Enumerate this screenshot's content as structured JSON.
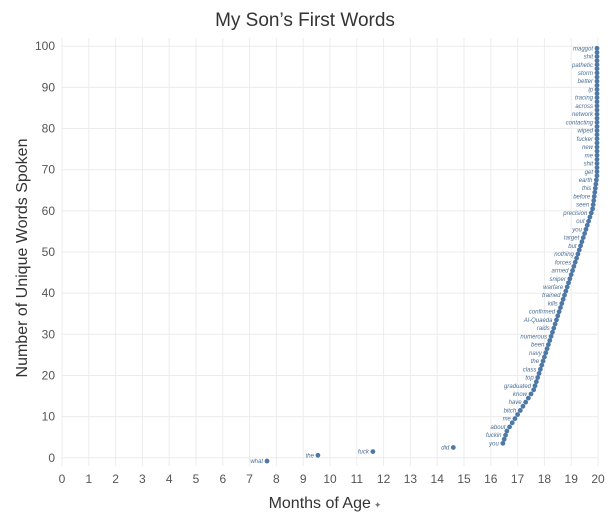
{
  "chart_data": {
    "type": "scatter",
    "title": "My Son’s First Words",
    "xlabel": "Months of Age",
    "xlabel_marker": "✦",
    "ylabel": "Number of Unique Words Spoken",
    "xlim": [
      0,
      20
    ],
    "ylim": [
      -2,
      102
    ],
    "x_ticks": [
      0,
      1,
      2,
      3,
      4,
      5,
      6,
      7,
      8,
      9,
      10,
      11,
      12,
      13,
      14,
      15,
      16,
      17,
      18,
      19,
      20
    ],
    "y_ticks": [
      0,
      10,
      20,
      30,
      40,
      50,
      60,
      70,
      80,
      90,
      100
    ],
    "grid": true,
    "point_color": "#4e79a7",
    "points": [
      {
        "x": 7.65,
        "y": -0.8,
        "label": "what"
      },
      {
        "x": 9.55,
        "y": 0.6,
        "label": "the"
      },
      {
        "x": 11.6,
        "y": 1.5,
        "label": "fuck"
      },
      {
        "x": 14.6,
        "y": 2.5,
        "label": "did"
      },
      {
        "x": 16.45,
        "y": 3.5,
        "label": "you"
      },
      {
        "x": 16.5,
        "y": 4.5,
        "label": ""
      },
      {
        "x": 16.55,
        "y": 5.5,
        "label": "fuckin"
      },
      {
        "x": 16.6,
        "y": 6.5,
        "label": ""
      },
      {
        "x": 16.7,
        "y": 7.5,
        "label": "about"
      },
      {
        "x": 16.8,
        "y": 8.5,
        "label": ""
      },
      {
        "x": 16.9,
        "y": 9.5,
        "label": "me"
      },
      {
        "x": 17.0,
        "y": 10.5,
        "label": ""
      },
      {
        "x": 17.1,
        "y": 11.5,
        "label": "bitch"
      },
      {
        "x": 17.2,
        "y": 12.5,
        "label": ""
      },
      {
        "x": 17.3,
        "y": 13.5,
        "label": "have"
      },
      {
        "x": 17.4,
        "y": 14.5,
        "label": ""
      },
      {
        "x": 17.5,
        "y": 15.5,
        "label": "know"
      },
      {
        "x": 17.6,
        "y": 16.5,
        "label": ""
      },
      {
        "x": 17.65,
        "y": 17.5,
        "label": "graduated"
      },
      {
        "x": 17.7,
        "y": 18.5,
        "label": ""
      },
      {
        "x": 17.75,
        "y": 19.5,
        "label": "top"
      },
      {
        "x": 17.8,
        "y": 20.5,
        "label": ""
      },
      {
        "x": 17.85,
        "y": 21.5,
        "label": "class"
      },
      {
        "x": 17.9,
        "y": 22.5,
        "label": ""
      },
      {
        "x": 17.95,
        "y": 23.5,
        "label": "the"
      },
      {
        "x": 18.0,
        "y": 24.5,
        "label": ""
      },
      {
        "x": 18.05,
        "y": 25.5,
        "label": "navy"
      },
      {
        "x": 18.1,
        "y": 26.5,
        "label": ""
      },
      {
        "x": 18.15,
        "y": 27.5,
        "label": "been"
      },
      {
        "x": 18.2,
        "y": 28.5,
        "label": ""
      },
      {
        "x": 18.25,
        "y": 29.5,
        "label": "numerous"
      },
      {
        "x": 18.3,
        "y": 30.5,
        "label": ""
      },
      {
        "x": 18.35,
        "y": 31.5,
        "label": "raids"
      },
      {
        "x": 18.4,
        "y": 32.5,
        "label": ""
      },
      {
        "x": 18.45,
        "y": 33.5,
        "label": "Al-Quaeda"
      },
      {
        "x": 18.5,
        "y": 34.5,
        "label": ""
      },
      {
        "x": 18.55,
        "y": 35.5,
        "label": "confirmed"
      },
      {
        "x": 18.6,
        "y": 36.5,
        "label": ""
      },
      {
        "x": 18.65,
        "y": 37.5,
        "label": "kills"
      },
      {
        "x": 18.7,
        "y": 38.5,
        "label": ""
      },
      {
        "x": 18.75,
        "y": 39.5,
        "label": "trained"
      },
      {
        "x": 18.8,
        "y": 40.5,
        "label": ""
      },
      {
        "x": 18.85,
        "y": 41.5,
        "label": "warfare"
      },
      {
        "x": 18.9,
        "y": 42.5,
        "label": ""
      },
      {
        "x": 18.95,
        "y": 43.5,
        "label": "sniper"
      },
      {
        "x": 19.0,
        "y": 44.5,
        "label": ""
      },
      {
        "x": 19.05,
        "y": 45.5,
        "label": "armed"
      },
      {
        "x": 19.1,
        "y": 46.5,
        "label": ""
      },
      {
        "x": 19.15,
        "y": 47.5,
        "label": "forces"
      },
      {
        "x": 19.2,
        "y": 48.5,
        "label": ""
      },
      {
        "x": 19.25,
        "y": 49.5,
        "label": "nothing"
      },
      {
        "x": 19.3,
        "y": 50.5,
        "label": ""
      },
      {
        "x": 19.35,
        "y": 51.5,
        "label": "but"
      },
      {
        "x": 19.4,
        "y": 52.5,
        "label": ""
      },
      {
        "x": 19.45,
        "y": 53.5,
        "label": "target"
      },
      {
        "x": 19.5,
        "y": 54.5,
        "label": ""
      },
      {
        "x": 19.55,
        "y": 55.5,
        "label": "you"
      },
      {
        "x": 19.6,
        "y": 56.5,
        "label": ""
      },
      {
        "x": 19.65,
        "y": 57.5,
        "label": "out"
      },
      {
        "x": 19.7,
        "y": 58.5,
        "label": ""
      },
      {
        "x": 19.75,
        "y": 59.5,
        "label": "precision"
      },
      {
        "x": 19.8,
        "y": 60.5,
        "label": ""
      },
      {
        "x": 19.82,
        "y": 61.5,
        "label": "seen"
      },
      {
        "x": 19.84,
        "y": 62.5,
        "label": ""
      },
      {
        "x": 19.86,
        "y": 63.5,
        "label": "before"
      },
      {
        "x": 19.88,
        "y": 64.5,
        "label": ""
      },
      {
        "x": 19.9,
        "y": 65.5,
        "label": "this"
      },
      {
        "x": 19.92,
        "y": 66.5,
        "label": ""
      },
      {
        "x": 19.94,
        "y": 67.5,
        "label": "earth"
      },
      {
        "x": 19.96,
        "y": 68.5,
        "label": ""
      },
      {
        "x": 19.97,
        "y": 69.5,
        "label": "get"
      },
      {
        "x": 19.98,
        "y": 70.5,
        "label": ""
      },
      {
        "x": 19.99,
        "y": 71.5,
        "label": "shit"
      },
      {
        "x": 20.0,
        "y": 72.5,
        "label": ""
      },
      {
        "x": 20.01,
        "y": 73.5,
        "label": "me"
      },
      {
        "x": 20.02,
        "y": 74.5,
        "label": ""
      },
      {
        "x": 20.03,
        "y": 75.5,
        "label": "new"
      },
      {
        "x": 20.04,
        "y": 76.5,
        "label": ""
      },
      {
        "x": 20.05,
        "y": 77.5,
        "label": "fucker"
      },
      {
        "x": 20.06,
        "y": 78.5,
        "label": ""
      },
      {
        "x": 20.07,
        "y": 79.5,
        "label": "wiped"
      },
      {
        "x": 20.08,
        "y": 80.5,
        "label": ""
      },
      {
        "x": 20.09,
        "y": 81.5,
        "label": "contacting"
      },
      {
        "x": 20.1,
        "y": 82.5,
        "label": ""
      },
      {
        "x": 20.11,
        "y": 83.5,
        "label": "network"
      },
      {
        "x": 20.12,
        "y": 84.5,
        "label": ""
      },
      {
        "x": 20.13,
        "y": 85.5,
        "label": "across"
      },
      {
        "x": 20.14,
        "y": 86.5,
        "label": ""
      },
      {
        "x": 20.15,
        "y": 87.5,
        "label": "tracing"
      },
      {
        "x": 20.16,
        "y": 88.5,
        "label": ""
      },
      {
        "x": 20.17,
        "y": 89.5,
        "label": "ip"
      },
      {
        "x": 20.18,
        "y": 90.5,
        "label": ""
      },
      {
        "x": 20.19,
        "y": 91.5,
        "label": "better"
      },
      {
        "x": 20.2,
        "y": 92.5,
        "label": ""
      },
      {
        "x": 20.21,
        "y": 93.5,
        "label": "storm"
      },
      {
        "x": 20.22,
        "y": 94.5,
        "label": ""
      },
      {
        "x": 20.23,
        "y": 95.5,
        "label": "pathetic"
      },
      {
        "x": 20.24,
        "y": 96.5,
        "label": ""
      },
      {
        "x": 20.25,
        "y": 97.5,
        "label": "shit"
      },
      {
        "x": 20.26,
        "y": 98.5,
        "label": ""
      },
      {
        "x": 20.27,
        "y": 99.5,
        "label": "maggot"
      }
    ]
  }
}
